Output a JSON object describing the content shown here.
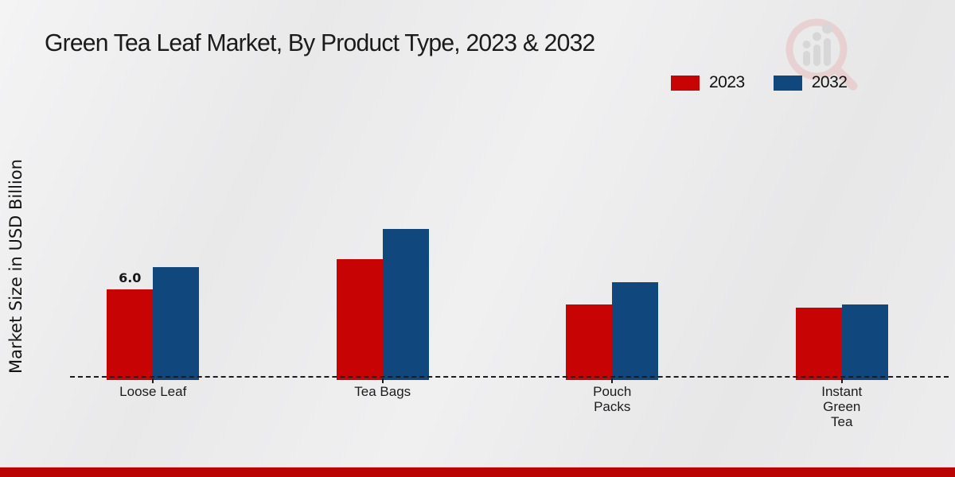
{
  "title": "Green Tea Leaf Market, By Product Type, 2023 & 2032",
  "y_axis_label": "Market Size in USD Billion",
  "legend": [
    {
      "label": "2023",
      "color": "#c80303"
    },
    {
      "label": "2032",
      "color": "#10487e"
    }
  ],
  "watermark_icon": "magnifier-bar-chart-logo",
  "footer": {
    "bar_color": "#ba0404"
  },
  "chart_data": {
    "type": "bar",
    "title": "Green Tea Leaf Market, By Product Type, 2023 & 2032",
    "unit": "USD Billion",
    "ylabel": "Market Size in USD Billion",
    "xlabel": "",
    "ylim": [
      0,
      12
    ],
    "grid": false,
    "legend_position": "top-right",
    "baseline_style": "dashed",
    "categories": [
      "Loose Leaf",
      "Tea Bags",
      "Pouch Packs",
      "Instant Green Tea"
    ],
    "category_display_lines": [
      [
        "Loose Leaf"
      ],
      [
        "Tea Bags"
      ],
      [
        "Pouch",
        "Packs"
      ],
      [
        "Instant",
        "Green",
        "Tea"
      ]
    ],
    "series": [
      {
        "name": "2023",
        "color": "#c80303",
        "values": [
          6.0,
          8.0,
          5.0,
          4.8
        ]
      },
      {
        "name": "2032",
        "color": "#10487e",
        "values": [
          7.5,
          10.0,
          6.5,
          5.0
        ]
      }
    ],
    "bar_labels": [
      {
        "series": "2023",
        "category": "Loose Leaf",
        "text": "6.0"
      }
    ]
  }
}
